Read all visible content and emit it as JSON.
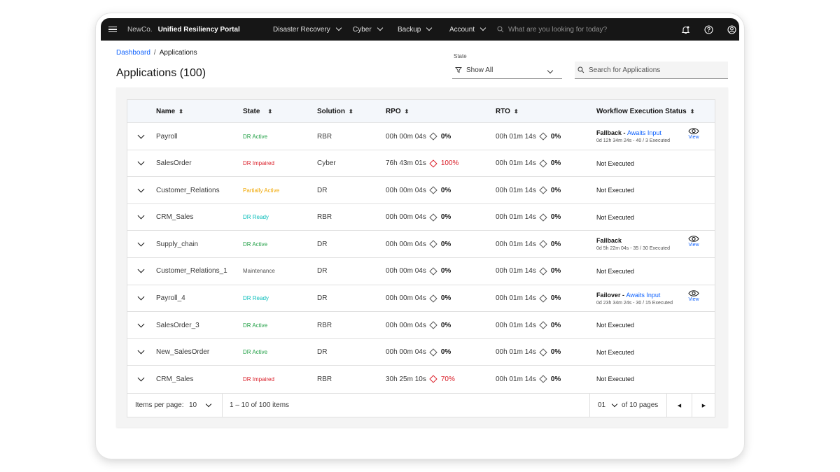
{
  "topbar": {
    "company": "NewCo.",
    "portal": "Unified Resiliency Portal",
    "nav": [
      "Disaster Recovery",
      "Cyber",
      "Backup",
      "Account"
    ],
    "search_placeholder": "What are you looking for today?",
    "icons": [
      "menu-icon",
      "notification-icon",
      "help-icon",
      "user-icon"
    ]
  },
  "breadcrumb": {
    "link": "Dashboard",
    "separator": "/",
    "current": "Applications"
  },
  "page_title": "Applications (100)",
  "filter": {
    "label": "State",
    "value": "Show All"
  },
  "search": {
    "placeholder": "Search for Applications"
  },
  "table": {
    "headers": [
      "Name",
      "State",
      "Solution",
      "RPO",
      "RTO",
      "Workflow Execution Status"
    ],
    "rows": [
      {
        "name": "Payroll",
        "state": "DR Active",
        "state_color": "#24a148",
        "solution": "RBR",
        "rpo": "00h 00m 04s",
        "rpo_pct": "0%",
        "rpo_bad": false,
        "rto": "00h 01m 14s",
        "rto_pct": "0%",
        "wf_type": "Fallback",
        "wf_status": "Awaits Input",
        "wf_detail": "0d 12h 34m 24s - 40 / 3 Executed",
        "view": "View"
      },
      {
        "name": "SalesOrder",
        "state": "DR Impaired",
        "state_color": "#da1e28",
        "solution": "Cyber",
        "rpo": "76h 43m 01s",
        "rpo_pct": "100%",
        "rpo_bad": true,
        "rto": "00h 01m 14s",
        "rto_pct": "0%",
        "wf_plain": "Not Executed"
      },
      {
        "name": "Customer_Relations",
        "state": "Partially Active",
        "state_color": "#f1a700",
        "solution": "DR",
        "rpo": "00h 00m 04s",
        "rpo_pct": "0%",
        "rpo_bad": false,
        "rto": "00h 01m 14s",
        "rto_pct": "0%",
        "wf_plain": "Not Executed"
      },
      {
        "name": "CRM_Sales",
        "state": "DR Ready",
        "state_color": "#08bdba",
        "solution": "RBR",
        "rpo": "00h 00m 04s",
        "rpo_pct": "0%",
        "rpo_bad": false,
        "rto": "00h 01m 14s",
        "rto_pct": "0%",
        "wf_plain": "Not Executed"
      },
      {
        "name": "Supply_chain",
        "state": "DR Active",
        "state_color": "#24a148",
        "solution": "DR",
        "rpo": "00h 00m 04s",
        "rpo_pct": "0%",
        "rpo_bad": false,
        "rto": "00h 01m 14s",
        "rto_pct": "0%",
        "wf_type": "Fallback",
        "wf_status": "",
        "wf_detail": "0d 5h 22m 04s - 35 / 30 Executed",
        "view": "View"
      },
      {
        "name": "Customer_Relations_1",
        "state": "Maintenance",
        "state_color": "#525252",
        "solution": "DR",
        "rpo": "00h 00m 04s",
        "rpo_pct": "0%",
        "rpo_bad": false,
        "rto": "00h 01m 14s",
        "rto_pct": "0%",
        "wf_plain": "Not Executed"
      },
      {
        "name": "Payroll_4",
        "state": "DR Ready",
        "state_color": "#08bdba",
        "solution": "DR",
        "rpo": "00h 00m 04s",
        "rpo_pct": "0%",
        "rpo_bad": false,
        "rto": "00h 01m 14s",
        "rto_pct": "0%",
        "wf_type": "Failover",
        "wf_status": "Awaits Input",
        "wf_detail": "0d 23h 34m 24s - 30 / 15 Executed",
        "view": "View"
      },
      {
        "name": "SalesOrder_3",
        "state": "DR Active",
        "state_color": "#24a148",
        "solution": "RBR",
        "rpo": "00h 00m 04s",
        "rpo_pct": "0%",
        "rpo_bad": false,
        "rto": "00h 01m 14s",
        "rto_pct": "0%",
        "wf_plain": "Not Executed"
      },
      {
        "name": "New_SalesOrder",
        "state": "DR Active",
        "state_color": "#24a148",
        "solution": "DR",
        "rpo": "00h 00m 04s",
        "rpo_pct": "0%",
        "rpo_bad": false,
        "rto": "00h 01m 14s",
        "rto_pct": "0%",
        "wf_plain": "Not Executed"
      },
      {
        "name": "CRM_Sales",
        "state": "DR Impaired",
        "state_color": "#da1e28",
        "solution": "RBR",
        "rpo": "30h 25m 10s",
        "rpo_pct": "70%",
        "rpo_bad": true,
        "rto": "00h 01m 14s",
        "rto_pct": "0%",
        "wf_plain": "Not Executed"
      }
    ]
  },
  "pagination": {
    "items_per_page_label": "Items per page:",
    "items_per_page": "10",
    "range": "1 – 10 of 100 items",
    "page": "01",
    "of_pages": "of 10 pages"
  },
  "colors": {
    "accent": "#0f62fe",
    "danger": "#da1e28",
    "topbar": "#161616"
  }
}
